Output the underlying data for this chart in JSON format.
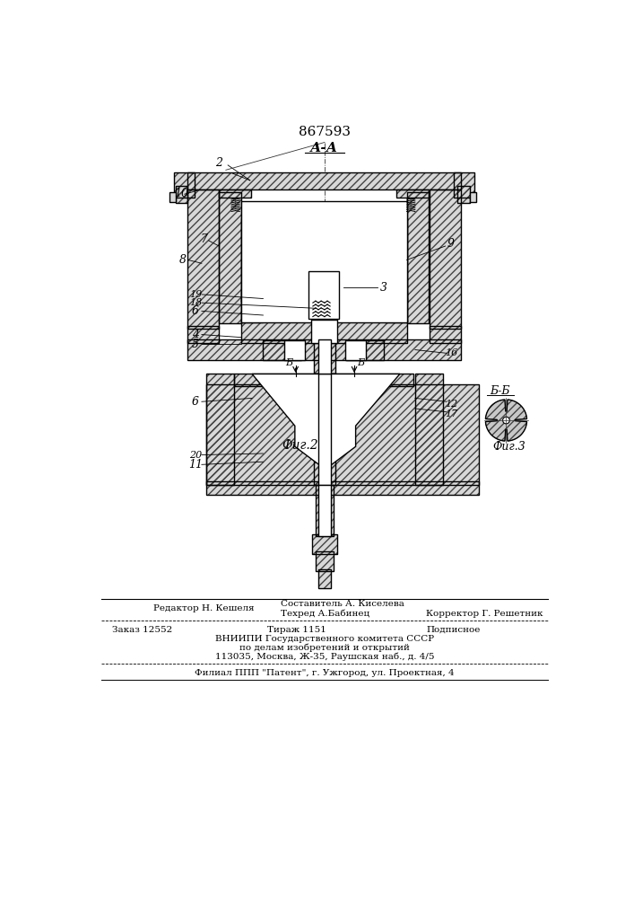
{
  "patent_number": "867593",
  "section_aa": "А-А",
  "section_bb": "Б-Б",
  "fig2_label": "Фиг.2",
  "fig3_label": "Фиг.3",
  "editor_text": "Редактор Н. Кешеля",
  "composer_text": "Составитель А. Киселева",
  "techred_text": "Техред А.Бабинец",
  "corrector_text": "Корректор Г. Решетник",
  "order_text": "Заказ 12552",
  "tirazh_text": "Тираж 1151",
  "podpisnoe_text": "Подписное",
  "vniip_text": "ВНИИПИ Государственного комитета СССР",
  "po_delam_text": "по делам изобретений и открытий",
  "address_text": "113035, Москва, Ж-35, Раушская наб., д. 4/5",
  "filial_text": "Филиал ППП \"Патент\", г. Ужгород, ул. Проектная, 4",
  "bg_color": "#ffffff",
  "line_color": "#000000",
  "hatch_color": "#444444",
  "hatch_fill": "#e8e8e8"
}
